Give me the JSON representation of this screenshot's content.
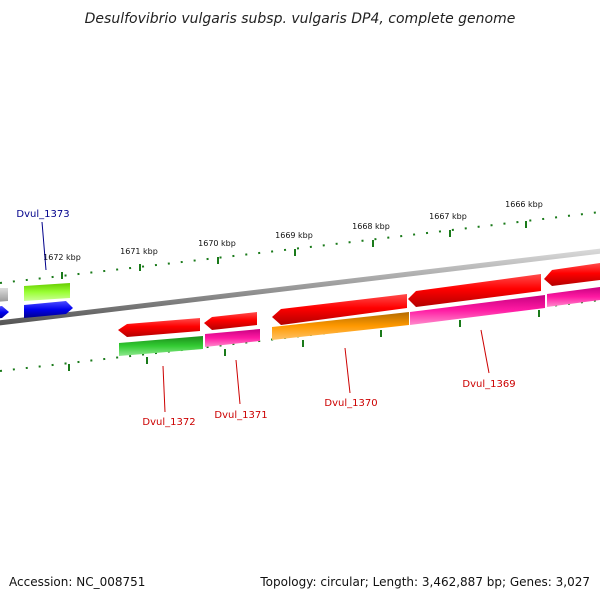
{
  "title": "Desulfovibrio vulgaris subsp. vulgaris DP4, complete genome",
  "footer": {
    "accession": "Accession: NC_008751",
    "summary": "Topology: circular; Length: 3,462,887 bp; Genes: 3,027"
  },
  "scale_labels": [
    "1666 kbp",
    "1667 kbp",
    "1668 kbp",
    "1669 kbp",
    "1670 kbp",
    "1671 kbp",
    "1672 kbp"
  ],
  "gene_labels": {
    "dvul_1373": "Dvul_1373",
    "dvul_1372": "Dvul_1372",
    "dvul_1371": "Dvul_1371",
    "dvul_1370": "Dvul_1370",
    "dvul_1369": "Dvul_1369"
  },
  "colors": {
    "backbone": "#7d7d7d",
    "tick": "#1a7a1a",
    "cds": "#ff0000",
    "highlight_label": "#00008b",
    "label": "#cc0000",
    "green": "#33cc33",
    "pink": "#ff1aa3",
    "orange": "#ff9900",
    "lime": "#99ff33",
    "blue": "#0000ee",
    "gray": "#c0c0c0"
  }
}
